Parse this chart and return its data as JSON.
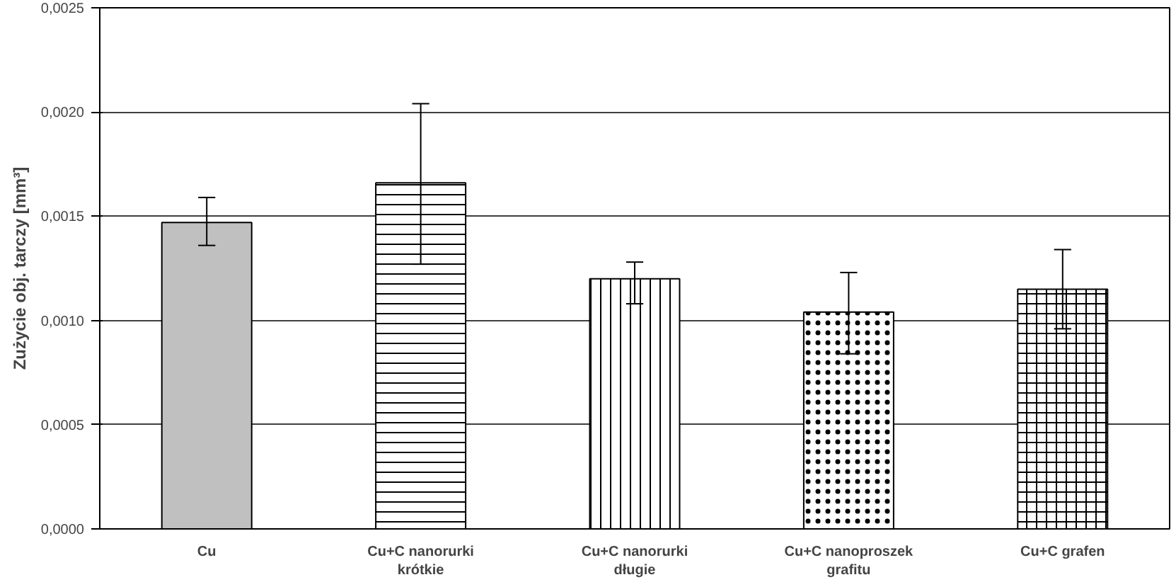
{
  "chart_data": {
    "type": "bar",
    "ylabel": "Zużycie obj. tarczy [mm³]",
    "categories": [
      "Cu",
      "Cu+C nanorurki\nkrótkie",
      "Cu+C nanorurki\ndługie",
      "Cu+C nanoproszek\ngrafitu",
      "Cu+C grafen"
    ],
    "values": [
      0.00147,
      0.00166,
      0.0012,
      0.00104,
      0.00115
    ],
    "colors": [
      "#c0c0c0",
      "#ffffff",
      "#ffffff",
      "#ffffff",
      "#ffffff"
    ],
    "errors": [
      [
        0.00136,
        0.00159
      ],
      [
        0.00127,
        0.00204
      ],
      [
        0.00108,
        0.00128
      ],
      [
        0.00084,
        0.00123
      ],
      [
        0.00096,
        0.00134
      ]
    ],
    "ylim": [
      0,
      0.0025
    ],
    "yticks": [
      {
        "value": 0,
        "label": "0,0000"
      },
      {
        "value": 0.0005,
        "label": "0,0005"
      },
      {
        "value": 0.001,
        "label": "0,0010"
      },
      {
        "value": 0.0015,
        "label": "0,0015"
      },
      {
        "value": 0.002,
        "label": "0,0020"
      },
      {
        "value": 0.0025,
        "label": "0,0025"
      }
    ],
    "grid": "y"
  }
}
